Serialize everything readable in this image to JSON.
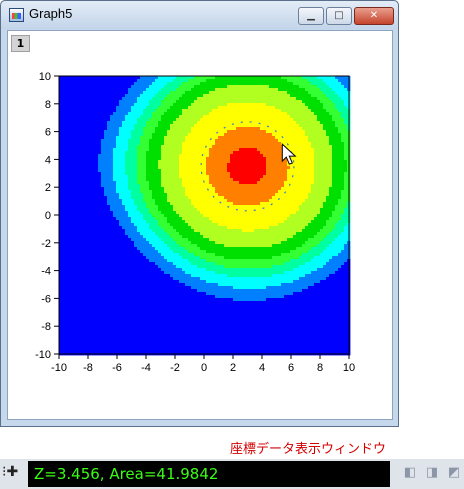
{
  "window": {
    "title": "Graph5",
    "layer": "1"
  },
  "chart_data": {
    "type": "contour",
    "xlim": [
      -10,
      10
    ],
    "ylim": [
      -10,
      10
    ],
    "x_ticks": [
      -10,
      -8,
      -6,
      -4,
      -2,
      0,
      2,
      4,
      6,
      8,
      10
    ],
    "y_ticks": [
      -10,
      -8,
      -6,
      -4,
      -2,
      0,
      2,
      4,
      6,
      8,
      10
    ],
    "peak": {
      "x": 3,
      "y": 3.5
    },
    "trough": {
      "x": -10,
      "y": -10
    },
    "colors": [
      "#0000ff",
      "#0080ff",
      "#00ffff",
      "#00ffa0",
      "#33ff33",
      "#00e000",
      "#b0ff20",
      "#ffff00",
      "#ff8000",
      "#ff0000"
    ],
    "selected_contour": {
      "center": [
        3,
        3.5
      ],
      "radius": 3.2
    }
  },
  "coord_window_label": "座標データ表示ウィンドウ",
  "readout": "Z=3.456, Area=41.9842"
}
